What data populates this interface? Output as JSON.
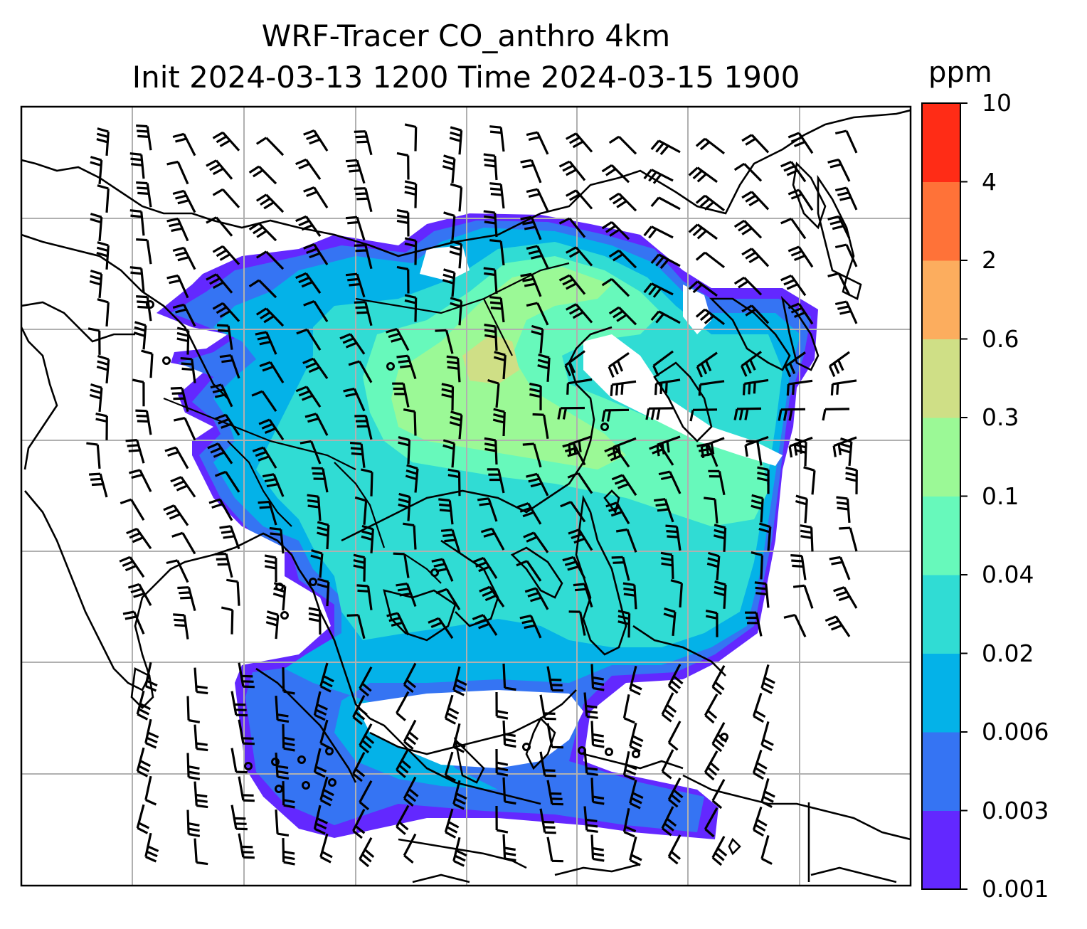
{
  "title": {
    "line1": "WRF-Tracer CO_anthro 4km",
    "line2": "Init 2024-03-13 1200 Time 2024-03-15 1900"
  },
  "colorbar": {
    "unit": "ppm",
    "levels": [
      "0.001",
      "0.003",
      "0.006",
      "0.02",
      "0.04",
      "0.1",
      "0.3",
      "0.6",
      "2",
      "4",
      "10"
    ],
    "colors": [
      "#6328ff",
      "#3574f3",
      "#04b2e8",
      "#30dcd4",
      "#67f9bb",
      "#9bf996",
      "#cfdf86",
      "#fcad5e",
      "#ff7238",
      "#ff2c16"
    ]
  },
  "map": {
    "type": "tracer concentration field with wind barbs",
    "gridlines": true,
    "features": [
      "coastlines",
      "country borders",
      "wind barbs",
      "calm wind circles"
    ]
  }
}
